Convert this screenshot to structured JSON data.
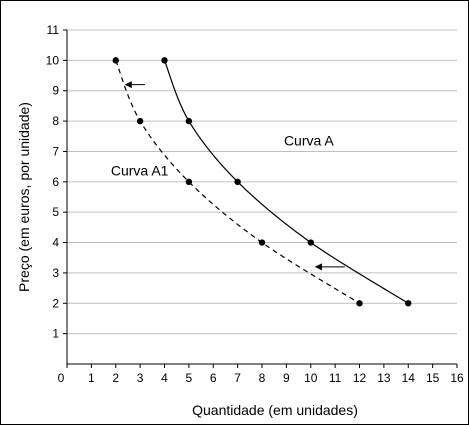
{
  "chart_data": {
    "type": "line",
    "title": "",
    "xlabel": "Quantidade (em unidades)",
    "ylabel": "Preço (em euros, por unidade)",
    "xlim": [
      0,
      16
    ],
    "ylim": [
      0,
      11
    ],
    "x_ticks": [
      "0",
      "1",
      "2",
      "3",
      "4",
      "5",
      "6",
      "7",
      "8",
      "9",
      "10",
      "11",
      "12",
      "13",
      "14",
      "15",
      "16"
    ],
    "y_ticks": [
      "1",
      "2",
      "3",
      "4",
      "5",
      "6",
      "7",
      "8",
      "9",
      "10",
      "11"
    ],
    "grid": "horizontal",
    "series": [
      {
        "name": "Curva A",
        "style": "solid",
        "points": [
          [
            4,
            10
          ],
          [
            5,
            8
          ],
          [
            7,
            6
          ],
          [
            10,
            4
          ],
          [
            14,
            2
          ]
        ]
      },
      {
        "name": "Curva A1",
        "style": "dashed",
        "points": [
          [
            2,
            10
          ],
          [
            3,
            8
          ],
          [
            5,
            6
          ],
          [
            8,
            4
          ],
          [
            12,
            2
          ]
        ]
      }
    ],
    "arrows": [
      {
        "from": [
          3.2,
          9.2
        ],
        "to": [
          2.4,
          9.2
        ]
      },
      {
        "from": [
          11.4,
          3.2
        ],
        "to": [
          10.2,
          3.2
        ]
      }
    ],
    "annotations": [
      {
        "text": "Curva A",
        "x": 8.9,
        "y": 7.2
      },
      {
        "text": "Curva A1",
        "x": 1.8,
        "y": 6.2
      }
    ],
    "colors": {
      "line": "#000000",
      "grid": "#bfbfbf",
      "axis": "#000000"
    }
  }
}
